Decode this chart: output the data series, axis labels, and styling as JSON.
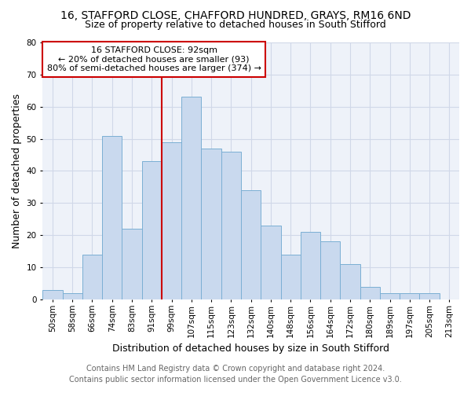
{
  "title1": "16, STAFFORD CLOSE, CHAFFORD HUNDRED, GRAYS, RM16 6ND",
  "title2": "Size of property relative to detached houses in South Stifford",
  "xlabel": "Distribution of detached houses by size in South Stifford",
  "ylabel": "Number of detached properties",
  "categories": [
    "50sqm",
    "58sqm",
    "66sqm",
    "74sqm",
    "83sqm",
    "91sqm",
    "99sqm",
    "107sqm",
    "115sqm",
    "123sqm",
    "132sqm",
    "140sqm",
    "148sqm",
    "156sqm",
    "164sqm",
    "172sqm",
    "180sqm",
    "189sqm",
    "197sqm",
    "205sqm",
    "213sqm"
  ],
  "values": [
    3,
    2,
    14,
    51,
    22,
    43,
    49,
    63,
    47,
    46,
    34,
    23,
    14,
    21,
    18,
    11,
    4,
    2,
    2,
    2,
    0
  ],
  "bar_color": "#c9d9ee",
  "bar_edge_color": "#7bafd4",
  "vline_x": 5.5,
  "vline_color": "#cc0000",
  "annotation_title": "16 STAFFORD CLOSE: 92sqm",
  "annotation_line1": "← 20% of detached houses are smaller (93)",
  "annotation_line2": "80% of semi-detached houses are larger (374) →",
  "annotation_box_color": "#cc0000",
  "ylim": [
    0,
    80
  ],
  "yticks": [
    0,
    10,
    20,
    30,
    40,
    50,
    60,
    70,
    80
  ],
  "footnote1": "Contains HM Land Registry data © Crown copyright and database right 2024.",
  "footnote2": "Contains public sector information licensed under the Open Government Licence v3.0.",
  "background_color": "#ffffff",
  "plot_bg_color": "#eef2f9",
  "grid_color": "#d0d8e8",
  "title_fontsize": 10,
  "subtitle_fontsize": 9,
  "tick_fontsize": 7.5,
  "axis_label_fontsize": 9,
  "footnote_fontsize": 7
}
